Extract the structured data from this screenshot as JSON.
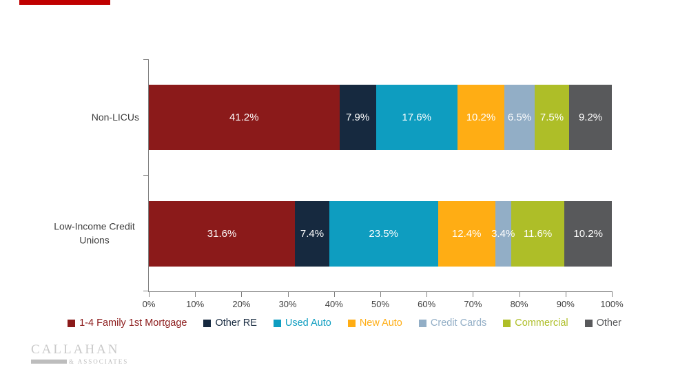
{
  "page": {
    "background": "#ffffff"
  },
  "top_banner": {
    "color": "#c00000"
  },
  "chart_data": {
    "type": "bar",
    "orientation": "horizontal-stacked",
    "title": "",
    "xlabel": "",
    "ylabel": "",
    "xlim": [
      0,
      100
    ],
    "grid": false,
    "legend_position": "bottom",
    "categories": [
      "Non-LICUs",
      "Low-Income Credit Unions"
    ],
    "series": [
      {
        "name": "1-4 Family 1st Mortgage",
        "color": "#8b1a1a",
        "values": [
          41.2,
          31.6
        ]
      },
      {
        "name": "Other RE",
        "color": "#16293f",
        "values": [
          7.9,
          7.4
        ]
      },
      {
        "name": "Used Auto",
        "color": "#0e9dc0",
        "values": [
          17.6,
          23.5
        ]
      },
      {
        "name": "New Auto",
        "color": "#ffad14",
        "values": [
          10.2,
          12.4
        ]
      },
      {
        "name": "Credit Cards",
        "color": "#92aec6",
        "values": [
          6.5,
          3.4
        ]
      },
      {
        "name": "Commercial",
        "color": "#aebe28",
        "values": [
          7.5,
          11.6
        ]
      },
      {
        "name": "Other",
        "color": "#58595b",
        "values": [
          9.2,
          10.2
        ]
      }
    ],
    "x_ticks": [
      "0%",
      "10%",
      "20%",
      "30%",
      "40%",
      "50%",
      "60%",
      "70%",
      "80%",
      "90%",
      "100%"
    ],
    "value_label_suffix": "%"
  },
  "axis": {
    "line_color": "#7f7f7f",
    "tick_label_color": "#404040"
  },
  "logo": {
    "line1": "CALLAHAN",
    "line2": "ASSOCIATES"
  }
}
